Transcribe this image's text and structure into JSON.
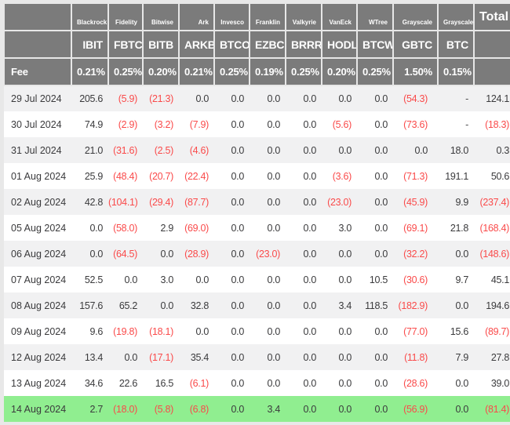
{
  "chart_data": {
    "type": "table",
    "column_keys": [
      "date",
      "ibit",
      "fbtc",
      "bitb",
      "arkb",
      "btco",
      "ezbc",
      "brrr",
      "hodl",
      "btcw",
      "gbtc",
      "btc",
      "total"
    ],
    "header": {
      "issuers": [
        "",
        "Blackrock",
        "Fidelity",
        "Bitwise",
        "Ark",
        "Invesco",
        "Franklin",
        "Valkyrie",
        "VanEck",
        "WTree",
        "Grayscale",
        "Grayscale",
        "Total"
      ],
      "tickers": [
        "",
        "IBIT",
        "FBTC",
        "BITB",
        "ARKB",
        "BTCO",
        "EZBC",
        "BRRR",
        "HODL",
        "BTCW",
        "GBTC",
        "BTC",
        ""
      ],
      "fees": [
        "Fee",
        "0.21%",
        "0.25%",
        "0.20%",
        "0.21%",
        "0.25%",
        "0.19%",
        "0.25%",
        "0.20%",
        "0.25%",
        "1.50%",
        "0.15%",
        ""
      ]
    },
    "rows": [
      {
        "date": "29 Jul 2024",
        "highlight": false,
        "values": [
          "205.6",
          "(5.9)",
          "(21.3)",
          "0.0",
          "0.0",
          "0.0",
          "0.0",
          "0.0",
          "0.0",
          "(54.3)",
          "-",
          "124.1"
        ]
      },
      {
        "date": "30 Jul 2024",
        "highlight": false,
        "values": [
          "74.9",
          "(2.9)",
          "(3.2)",
          "(7.9)",
          "0.0",
          "0.0",
          "0.0",
          "(5.6)",
          "0.0",
          "(73.6)",
          "-",
          "(18.3)"
        ]
      },
      {
        "date": "31 Jul 2024",
        "highlight": false,
        "values": [
          "21.0",
          "(31.6)",
          "(2.5)",
          "(4.6)",
          "0.0",
          "0.0",
          "0.0",
          "0.0",
          "0.0",
          "0.0",
          "18.0",
          "0.3"
        ]
      },
      {
        "date": "01 Aug 2024",
        "highlight": false,
        "values": [
          "25.9",
          "(48.4)",
          "(20.7)",
          "(22.4)",
          "0.0",
          "0.0",
          "0.0",
          "(3.6)",
          "0.0",
          "(71.3)",
          "191.1",
          "50.6"
        ]
      },
      {
        "date": "02 Aug 2024",
        "highlight": false,
        "values": [
          "42.8",
          "(104.1)",
          "(29.4)",
          "(87.7)",
          "0.0",
          "0.0",
          "0.0",
          "(23.0)",
          "0.0",
          "(45.9)",
          "9.9",
          "(237.4)"
        ]
      },
      {
        "date": "05 Aug 2024",
        "highlight": false,
        "values": [
          "0.0",
          "(58.0)",
          "2.9",
          "(69.0)",
          "0.0",
          "0.0",
          "0.0",
          "3.0",
          "0.0",
          "(69.1)",
          "21.8",
          "(168.4)"
        ]
      },
      {
        "date": "06 Aug 2024",
        "highlight": false,
        "values": [
          "0.0",
          "(64.5)",
          "0.0",
          "(28.9)",
          "0.0",
          "(23.0)",
          "0.0",
          "0.0",
          "0.0",
          "(32.2)",
          "0.0",
          "(148.6)"
        ]
      },
      {
        "date": "07 Aug 2024",
        "highlight": false,
        "values": [
          "52.5",
          "0.0",
          "3.0",
          "0.0",
          "0.0",
          "0.0",
          "0.0",
          "0.0",
          "10.5",
          "(30.6)",
          "9.7",
          "45.1"
        ]
      },
      {
        "date": "08 Aug 2024",
        "highlight": false,
        "values": [
          "157.6",
          "65.2",
          "0.0",
          "32.8",
          "0.0",
          "0.0",
          "0.0",
          "3.4",
          "118.5",
          "(182.9)",
          "0.0",
          "194.6"
        ]
      },
      {
        "date": "09 Aug 2024",
        "highlight": false,
        "values": [
          "9.6",
          "(19.8)",
          "(18.1)",
          "0.0",
          "0.0",
          "0.0",
          "0.0",
          "0.0",
          "0.0",
          "(77.0)",
          "15.6",
          "(89.7)"
        ]
      },
      {
        "date": "12 Aug 2024",
        "highlight": false,
        "values": [
          "13.4",
          "0.0",
          "(17.1)",
          "35.4",
          "0.0",
          "0.0",
          "0.0",
          "0.0",
          "0.0",
          "(11.8)",
          "7.9",
          "27.8"
        ]
      },
      {
        "date": "13 Aug 2024",
        "highlight": false,
        "values": [
          "34.6",
          "22.6",
          "16.5",
          "(6.1)",
          "0.0",
          "0.0",
          "0.0",
          "0.0",
          "0.0",
          "(28.6)",
          "0.0",
          "39.0"
        ]
      },
      {
        "date": "14 Aug 2024",
        "highlight": true,
        "values": [
          "2.7",
          "(18.0)",
          "(5.8)",
          "(6.8)",
          "0.0",
          "3.4",
          "0.0",
          "0.0",
          "0.0",
          "(56.9)",
          "0.0",
          "(81.4)"
        ]
      }
    ],
    "colors": {
      "header_bg": "#7b7b7b",
      "header_text": "#ffffff",
      "negative_text": "#fa4a4a",
      "value_text": "#3a3a3c",
      "stripe_bg": "#f1f1f2",
      "row_bg": "#ffffff",
      "highlight_bg": "#90ee90",
      "grid_border": "#e7e7e7",
      "page_bg": "#e8e8e8"
    }
  }
}
